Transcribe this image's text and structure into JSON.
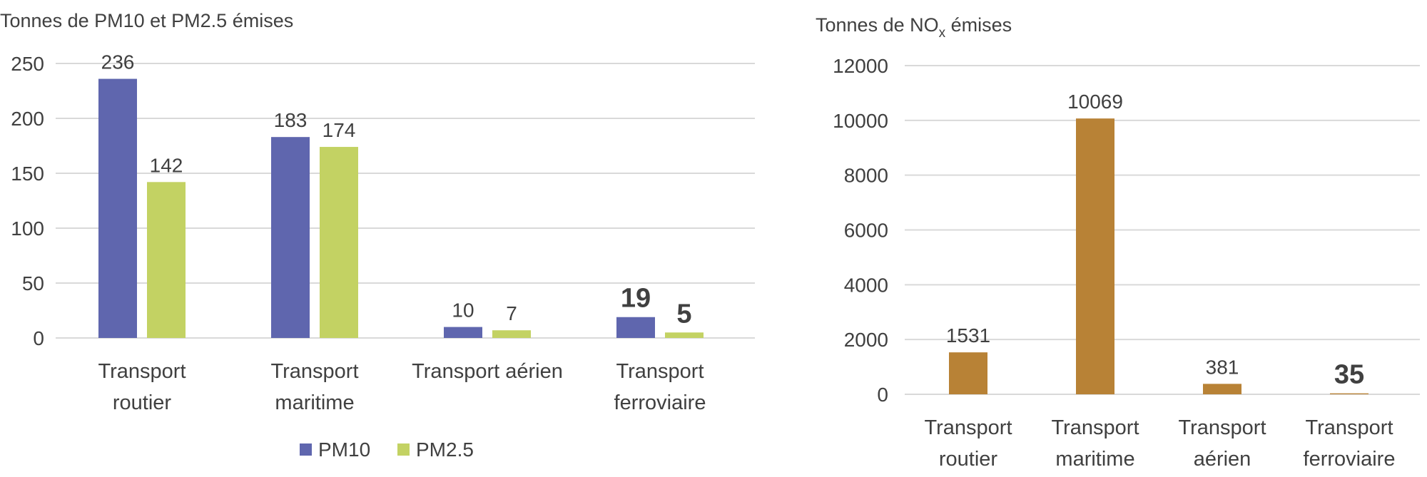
{
  "chart_data": [
    {
      "type": "bar",
      "ylabel": "Tonnes de PM10 et PM2.5 émises",
      "categories": [
        [
          "Transport",
          "routier"
        ],
        [
          "Transport",
          "maritime"
        ],
        [
          "Transport aérien"
        ],
        [
          "Transport",
          "ferroviaire"
        ]
      ],
      "series": [
        {
          "name": "PM10",
          "color": "#5f66ae",
          "values": [
            236,
            183,
            10,
            19
          ]
        },
        {
          "name": "PM2.5",
          "color": "#c3d263",
          "values": [
            142,
            174,
            7,
            5
          ]
        }
      ],
      "data_labels": [
        [
          "236",
          "183",
          "10",
          "19"
        ],
        [
          "142",
          "174",
          "7",
          "5"
        ]
      ],
      "bold_labels_category": 3,
      "ylim": [
        0,
        250
      ],
      "yticks": [
        0,
        50,
        100,
        150,
        200,
        250
      ],
      "grid": true,
      "legend": "bottom"
    },
    {
      "type": "bar",
      "ylabel": {
        "main": "Tonnes de NO",
        "sub": "x",
        "after": " émises"
      },
      "categories": [
        [
          "Transport",
          "routier"
        ],
        [
          "Transport",
          "maritime"
        ],
        [
          "Transport",
          "aérien"
        ],
        [
          "Transport",
          "ferroviaire"
        ]
      ],
      "series": [
        {
          "name": "",
          "color": "#b88236",
          "values": [
            1531,
            10069,
            381,
            35
          ]
        }
      ],
      "data_labels": [
        [
          "1531",
          "10069",
          "381",
          "35"
        ]
      ],
      "bold_labels_category": 3,
      "ylim": [
        0,
        12000
      ],
      "yticks": [
        0,
        2000,
        4000,
        6000,
        8000,
        10000,
        12000
      ],
      "grid": true,
      "legend": "none"
    }
  ]
}
